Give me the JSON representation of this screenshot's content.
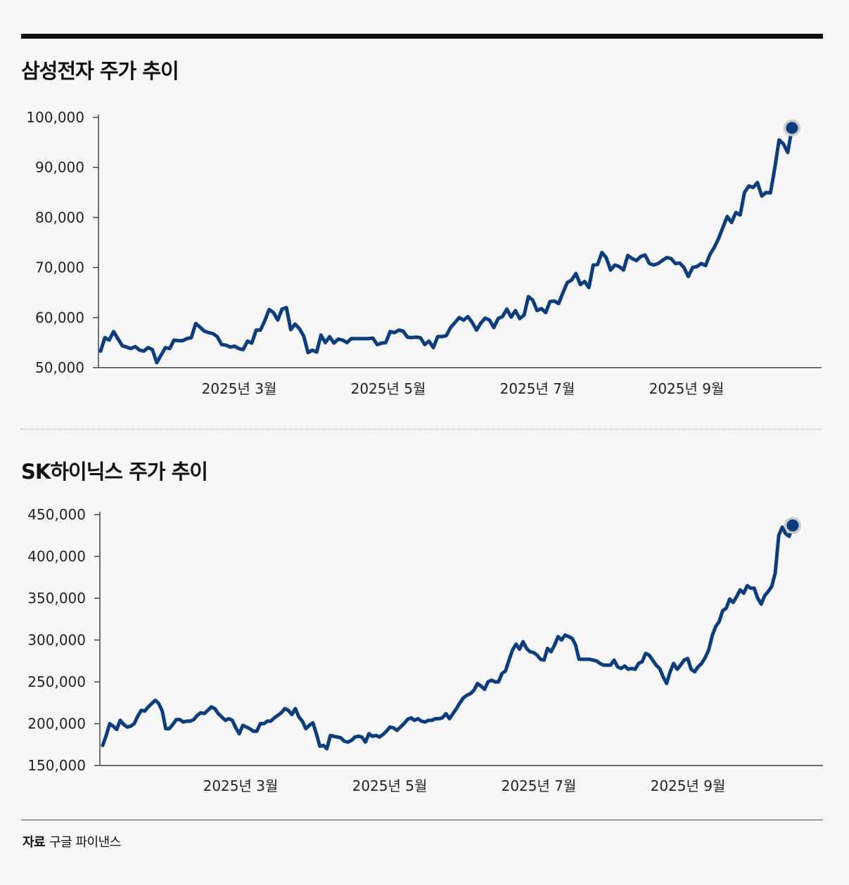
{
  "charts": [
    {
      "type": "line",
      "title": "삼성전자 주가 추이",
      "xlabel": "",
      "ylabel": "",
      "ylim": [
        50000,
        100000
      ],
      "y_ticks": [
        "100,000",
        "90,000",
        "80,000",
        "70,000",
        "60,000",
        "50,000"
      ],
      "x_tick_labels": [
        "2025년 3월",
        "2025년 5월",
        "2025년 7월",
        "2025년 9월"
      ],
      "line_color": "#0a3d7f",
      "marker_color": "#0a3d7f",
      "grid": false
    },
    {
      "type": "line",
      "title": "SK하이닉스 주가 추이",
      "xlabel": "",
      "ylabel": "",
      "ylim": [
        150000,
        450000
      ],
      "y_ticks": [
        "450,000",
        "400,000",
        "350,000",
        "300,000",
        "250,000",
        "200,000",
        "150,000"
      ],
      "x_tick_labels": [
        "2025년 3월",
        "2025년 5월",
        "2025년 7월",
        "2025년 9월"
      ],
      "line_color": "#0a3d7f",
      "marker_color": "#0a3d7f",
      "grid": false
    }
  ],
  "chart_data": [
    {
      "type": "line",
      "title": "삼성전자 주가 추이",
      "x_tick_labels": [
        "2025년 3월",
        "2025년 5월",
        "2025년 7월",
        "2025년 9월"
      ],
      "ylim": [
        50000,
        100000
      ],
      "series": [
        {
          "values": [
            53300,
            56000,
            55500,
            57200,
            55800,
            54400,
            54100,
            53800,
            54200,
            53500,
            53300,
            54000,
            53600,
            51000,
            52500,
            54000,
            53800,
            55500,
            55400,
            55400,
            55800,
            56000,
            58800,
            58100,
            57300,
            57000,
            56800,
            56200,
            54600,
            54500,
            54100,
            54300,
            53800,
            53600,
            55300,
            54900,
            57500,
            57500,
            59400,
            61600,
            61000,
            59500,
            61700,
            62000,
            57600,
            58700,
            57800,
            56300,
            53000,
            53500,
            53100,
            56500,
            55000,
            56200,
            54900,
            55700,
            55500,
            55000,
            55800,
            55800,
            55800,
            55800,
            55800,
            55900,
            54600,
            54900,
            55000,
            57200,
            57000,
            57500,
            57300,
            56100,
            56000,
            56100,
            56000,
            54600,
            55300,
            54000,
            56200,
            56200,
            56400,
            58000,
            59000,
            60000,
            59500,
            60200,
            59000,
            57500,
            58900,
            59900,
            59500,
            58000,
            59800,
            60200,
            61700,
            60100,
            61400,
            59800,
            60500,
            64200,
            63500,
            61400,
            61800,
            61000,
            63200,
            63300,
            62800,
            65000,
            67000,
            67500,
            68800,
            66600,
            67200,
            66000,
            70500,
            70600,
            73000,
            72000,
            69500,
            70500,
            70200,
            69500,
            72400,
            71800,
            71400,
            72200,
            72500,
            70800,
            70500,
            70800,
            71400,
            72000,
            71800,
            70800,
            70900,
            70000,
            68200,
            70000,
            70200,
            70800,
            70400,
            72600,
            74000,
            75800,
            78000,
            80200,
            79000,
            81000,
            80500,
            85000,
            86300,
            86000,
            87000,
            84300,
            85000,
            84900,
            89800,
            95500,
            94700,
            93000,
            97900
          ]
        }
      ]
    },
    {
      "type": "line",
      "title": "SK하이닉스 주가 추이",
      "x_tick_labels": [
        "2025년 3월",
        "2025년 5월",
        "2025년 7월",
        "2025년 9월"
      ],
      "ylim": [
        150000,
        450000
      ],
      "series": [
        {
          "values": [
            174000,
            186000,
            200000,
            197000,
            193000,
            204000,
            199000,
            196000,
            197000,
            200000,
            209000,
            216000,
            215000,
            220000,
            224000,
            228000,
            224000,
            215000,
            194000,
            194000,
            199000,
            205000,
            205000,
            202000,
            203000,
            203000,
            205000,
            210000,
            213000,
            212000,
            216000,
            220000,
            218000,
            212000,
            208000,
            204000,
            206000,
            204000,
            195000,
            188000,
            198000,
            196000,
            194000,
            191000,
            191000,
            200000,
            200000,
            203000,
            203000,
            207000,
            210000,
            213000,
            218000,
            216000,
            211000,
            218000,
            208000,
            203000,
            194000,
            198000,
            201000,
            188000,
            173000,
            174000,
            170000,
            186000,
            185000,
            184000,
            183000,
            179000,
            178000,
            180000,
            184000,
            185000,
            184000,
            178000,
            188000,
            185000,
            186000,
            184000,
            187000,
            191000,
            196000,
            195000,
            192000,
            196000,
            200000,
            205000,
            207000,
            204000,
            206000,
            203000,
            202000,
            204000,
            204000,
            206000,
            206000,
            207000,
            212000,
            206000,
            212000,
            218000,
            225000,
            231000,
            234000,
            236000,
            240000,
            248000,
            245000,
            241000,
            250000,
            252000,
            250000,
            250000,
            260000,
            263000,
            276000,
            288000,
            295000,
            289000,
            298000,
            290000,
            286000,
            285000,
            282000,
            277000,
            276000,
            290000,
            286000,
            294000,
            304000,
            300000,
            306000,
            304000,
            302000,
            294000,
            277000,
            277000,
            277000,
            277000,
            276000,
            275000,
            272000,
            270000,
            270000,
            270000,
            276000,
            268000,
            266000,
            269000,
            265000,
            266000,
            265000,
            272000,
            274000,
            284000,
            282000,
            276000,
            270000,
            266000,
            256000,
            248000,
            262000,
            272000,
            265000,
            270000,
            276000,
            278000,
            265000,
            262000,
            268000,
            272000,
            279000,
            288000,
            305000,
            316000,
            322000,
            335000,
            338000,
            349000,
            345000,
            352000,
            360000,
            356000,
            365000,
            362000,
            362000,
            350000,
            343000,
            353000,
            358000,
            364000,
            380000,
            425000,
            435000,
            427000,
            424000,
            437000
          ]
        }
      ]
    }
  ],
  "source": {
    "label": "자료",
    "text": "구글 파이낸스"
  }
}
